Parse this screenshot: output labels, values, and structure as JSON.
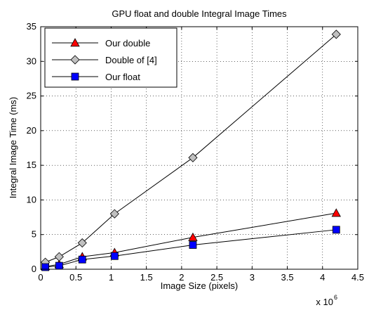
{
  "chart_data": {
    "type": "line",
    "title": "GPU float and double Integral Image Times",
    "xlabel": "Image Size (pixels)",
    "ylabel": "Integral Image Time (ms)",
    "x_multiplier_label": "x 10",
    "x_multiplier_exponent": "6",
    "xlim": [
      0,
      4.5
    ],
    "ylim": [
      0,
      35
    ],
    "xticks": [
      0,
      0.5,
      1,
      1.5,
      2,
      2.5,
      3,
      3.5,
      4,
      4.5
    ],
    "xtick_labels": [
      "0",
      "0.5",
      "1",
      "1.5",
      "2",
      "2.5",
      "3",
      "3.5",
      "4",
      "4.5"
    ],
    "yticks": [
      0,
      5,
      10,
      15,
      20,
      25,
      30,
      35
    ],
    "ytick_labels": [
      "0",
      "5",
      "10",
      "15",
      "20",
      "25",
      "30",
      "35"
    ],
    "grid": true,
    "grid_style": "dotted",
    "legend_position": "top-left",
    "x": [
      0.065536,
      0.262144,
      0.589824,
      1.048576,
      2.16,
      4.194304
    ],
    "series": [
      {
        "name": "Our double",
        "marker": "triangle",
        "color": "#ff0000",
        "values": [
          0.4,
          0.7,
          1.8,
          2.4,
          4.6,
          8.1
        ]
      },
      {
        "name": "Double of [4]",
        "marker": "diamond",
        "color": "#c0c0c0",
        "values": [
          1.0,
          1.8,
          3.8,
          8.0,
          16.1,
          33.9
        ]
      },
      {
        "name": "Our float",
        "marker": "square",
        "color": "#0000ff",
        "values": [
          0.3,
          0.5,
          1.4,
          1.9,
          3.5,
          5.7
        ]
      }
    ]
  }
}
